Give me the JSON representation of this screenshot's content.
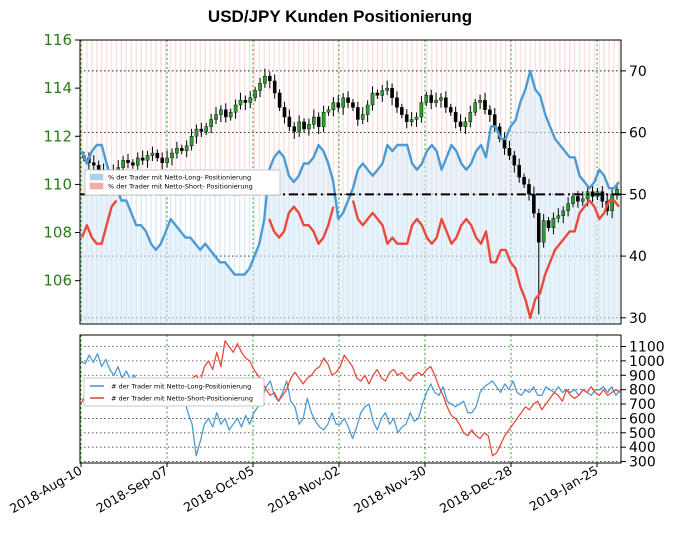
{
  "chart_data": [
    {
      "type": "candlestick+line",
      "title": "USD/JPY Kunden Positionierung",
      "x_tick_labels": [
        "2018-Aug-10",
        "2018-Sep-07",
        "2018-Oct-05",
        "2018-Nov-02",
        "2018-Nov-30",
        "2018-Dec-28",
        "2019-Jan-25"
      ],
      "left_axis": {
        "ylim": [
          104.2,
          116
        ],
        "ticks": [
          106,
          108,
          110,
          112,
          114,
          116
        ]
      },
      "right_axis": {
        "ylim": [
          29,
          75
        ],
        "ticks": [
          30,
          40,
          50,
          60,
          70
        ],
        "reference_line": 50
      },
      "legend": {
        "position": "left",
        "entries": [
          {
            "label": "% der Trader mit Netto-Long- Positionierung",
            "color": "#4d9bd4"
          },
          {
            "label": "% der Trader mit Netto-Short- Positionierung",
            "color": "#e84a3c"
          }
        ]
      },
      "series": [
        {
          "label": "USD/JPY",
          "axis": "left",
          "type": "candlestick",
          "close": [
            111.1,
            110.9,
            110.8,
            110.6,
            110.5,
            110.6,
            110.4,
            110.7,
            111.0,
            110.9,
            110.8,
            111.1,
            111.0,
            111.2,
            111.3,
            111.1,
            110.9,
            111.1,
            111.3,
            111.5,
            111.4,
            111.6,
            112.0,
            112.3,
            112.2,
            112.4,
            112.7,
            112.9,
            113.1,
            112.8,
            113.0,
            113.3,
            113.5,
            113.4,
            113.6,
            113.9,
            114.2,
            114.5,
            114.3,
            113.8,
            113.2,
            112.8,
            112.4,
            112.2,
            112.6,
            112.3,
            112.5,
            112.8,
            112.4,
            113.0,
            113.1,
            113.4,
            113.2,
            113.6,
            113.4,
            113.2,
            112.7,
            112.9,
            113.3,
            113.8,
            113.7,
            113.9,
            114.0,
            113.6,
            113.2,
            112.9,
            112.6,
            112.7,
            112.8,
            113.4,
            113.7,
            113.4,
            113.5,
            113.6,
            113.2,
            113.0,
            112.6,
            112.4,
            112.6,
            113.0,
            113.4,
            113.5,
            113.1,
            112.9,
            112.4,
            111.9,
            111.5,
            111.2,
            110.8,
            110.3,
            110.0,
            109.6,
            108.8,
            107.6,
            108.5,
            108.2,
            108.6,
            108.7,
            108.9,
            109.2,
            109.5,
            109.3,
            109.4,
            109.7,
            109.5,
            109.7,
            109.3,
            108.9,
            109.6,
            109.8
          ]
        },
        {
          "label": "% der Trader mit Netto-Long- Positionierung",
          "axis": "right",
          "color": "#4d9bd4",
          "values": [
            57,
            55,
            57,
            58,
            58,
            55,
            52,
            51,
            49,
            49,
            47,
            45,
            45,
            44,
            42,
            41,
            42,
            44,
            46,
            45,
            44,
            43,
            43,
            42,
            41,
            42,
            41,
            40,
            39,
            39,
            38,
            37,
            37,
            37,
            38,
            40,
            42,
            46,
            54,
            56,
            57,
            56,
            53,
            52,
            53,
            55,
            55,
            56,
            58,
            57,
            55,
            52,
            46,
            47,
            49,
            51,
            54,
            55,
            54,
            53,
            54,
            55,
            58,
            57,
            58,
            58,
            58,
            55,
            54,
            55,
            57,
            58,
            57,
            54,
            56,
            58,
            57,
            55,
            54,
            55,
            57,
            58,
            56,
            61,
            61,
            59,
            59,
            61,
            62,
            65,
            67,
            70,
            67,
            66,
            63,
            61,
            59,
            58,
            57,
            56,
            56,
            53,
            52,
            51,
            52,
            54,
            53,
            51,
            51,
            52
          ]
        },
        {
          "label": "% der Trader mit Netto-Short- Positionierung",
          "axis": "right",
          "color": "#e84a3c",
          "values": [
            43,
            45,
            43,
            42,
            42,
            45,
            48,
            49,
            51,
            51,
            53,
            55,
            55,
            56,
            58,
            59,
            58,
            56,
            54,
            55,
            56,
            57,
            57,
            58,
            59,
            58,
            59,
            60,
            61,
            61,
            62,
            63,
            63,
            63,
            62,
            60,
            58,
            54,
            46,
            44,
            43,
            44,
            47,
            48,
            47,
            45,
            45,
            44,
            42,
            43,
            45,
            48,
            54,
            53,
            51,
            49,
            46,
            45,
            46,
            47,
            46,
            45,
            42,
            43,
            42,
            42,
            42,
            45,
            46,
            45,
            43,
            42,
            43,
            46,
            44,
            42,
            43,
            45,
            46,
            45,
            43,
            42,
            44,
            39,
            39,
            41,
            41,
            39,
            38,
            35,
            33,
            30,
            33,
            34,
            37,
            39,
            41,
            42,
            43,
            44,
            44,
            47,
            48,
            49,
            48,
            46,
            47,
            49,
            49,
            48
          ]
        }
      ]
    },
    {
      "type": "line",
      "ylim": [
        290,
        1180
      ],
      "right_axis_ticks": [
        300,
        400,
        500,
        600,
        700,
        800,
        900,
        1000,
        1100
      ],
      "legend": {
        "position": "left",
        "entries": [
          {
            "label": "# der Trader mit Netto-Long-Positionierung",
            "color": "#4d9bd4"
          },
          {
            "label": "# der Trader mit Netto-Short-Positionierung",
            "color": "#e84a3c"
          }
        ]
      },
      "series": [
        {
          "label": "# der Trader mit Netto-Long-Positionierung",
          "color": "#4d9bd4",
          "values": [
            1000,
            980,
            1040,
            990,
            1050,
            960,
            1010,
            940,
            900,
            960,
            880,
            930,
            870,
            900,
            830,
            850,
            780,
            840,
            820,
            760,
            800,
            840,
            700,
            780,
            810,
            740,
            640,
            560,
            340,
            440,
            560,
            600,
            540,
            640,
            560,
            600,
            520,
            560,
            600,
            540,
            620,
            560,
            640,
            680,
            740,
            820,
            860,
            760,
            720,
            780,
            860,
            720,
            680,
            560,
            600,
            740,
            640,
            580,
            540,
            520,
            560,
            640,
            560,
            560,
            600,
            540,
            460,
            540,
            640,
            680,
            700,
            580,
            520,
            600,
            640,
            560,
            600,
            500,
            540,
            560,
            640,
            580,
            600,
            700,
            780,
            840,
            780,
            760,
            820,
            720,
            700,
            680,
            700,
            720,
            640,
            640,
            680,
            780,
            820,
            840,
            860,
            820,
            780,
            840,
            800,
            860,
            780,
            760,
            800,
            780,
            820,
            760,
            760,
            820,
            800,
            780,
            820,
            780,
            800,
            780,
            800,
            760,
            800,
            780,
            760,
            800,
            800,
            820,
            780,
            820,
            760,
            800
          ]
        },
        {
          "label": "# der Trader mit Netto-Short-Positionierung",
          "color": "#e84a3c",
          "values": [
            700,
            760,
            720,
            800,
            740,
            780,
            800,
            760,
            820,
            780,
            800,
            760,
            800,
            780,
            760,
            800,
            840,
            780,
            820,
            860,
            800,
            760,
            820,
            800,
            760,
            820,
            840,
            880,
            900,
            860,
            960,
            1000,
            940,
            1060,
            960,
            1140,
            1100,
            1060,
            1120,
            1060,
            1020,
            1000,
            940,
            900,
            860,
            800,
            760,
            780,
            720,
            760,
            800,
            880,
            920,
            880,
            840,
            880,
            900,
            940,
            960,
            1020,
            980,
            900,
            920,
            960,
            1040,
            1000,
            960,
            880,
            860,
            900,
            840,
            900,
            940,
            880,
            860,
            920,
            940,
            900,
            920,
            880,
            860,
            900,
            920,
            900,
            940,
            960,
            900,
            820,
            760,
            680,
            620,
            600,
            560,
            500,
            480,
            520,
            480,
            460,
            500,
            480,
            340,
            360,
            420,
            480,
            520,
            560,
            600,
            640,
            680,
            660,
            700,
            720,
            660,
            700,
            740,
            780,
            760,
            720,
            800,
            760,
            740,
            760,
            800,
            780,
            820,
            780,
            760,
            800,
            760,
            780,
            800,
            780
          ]
        }
      ]
    }
  ]
}
